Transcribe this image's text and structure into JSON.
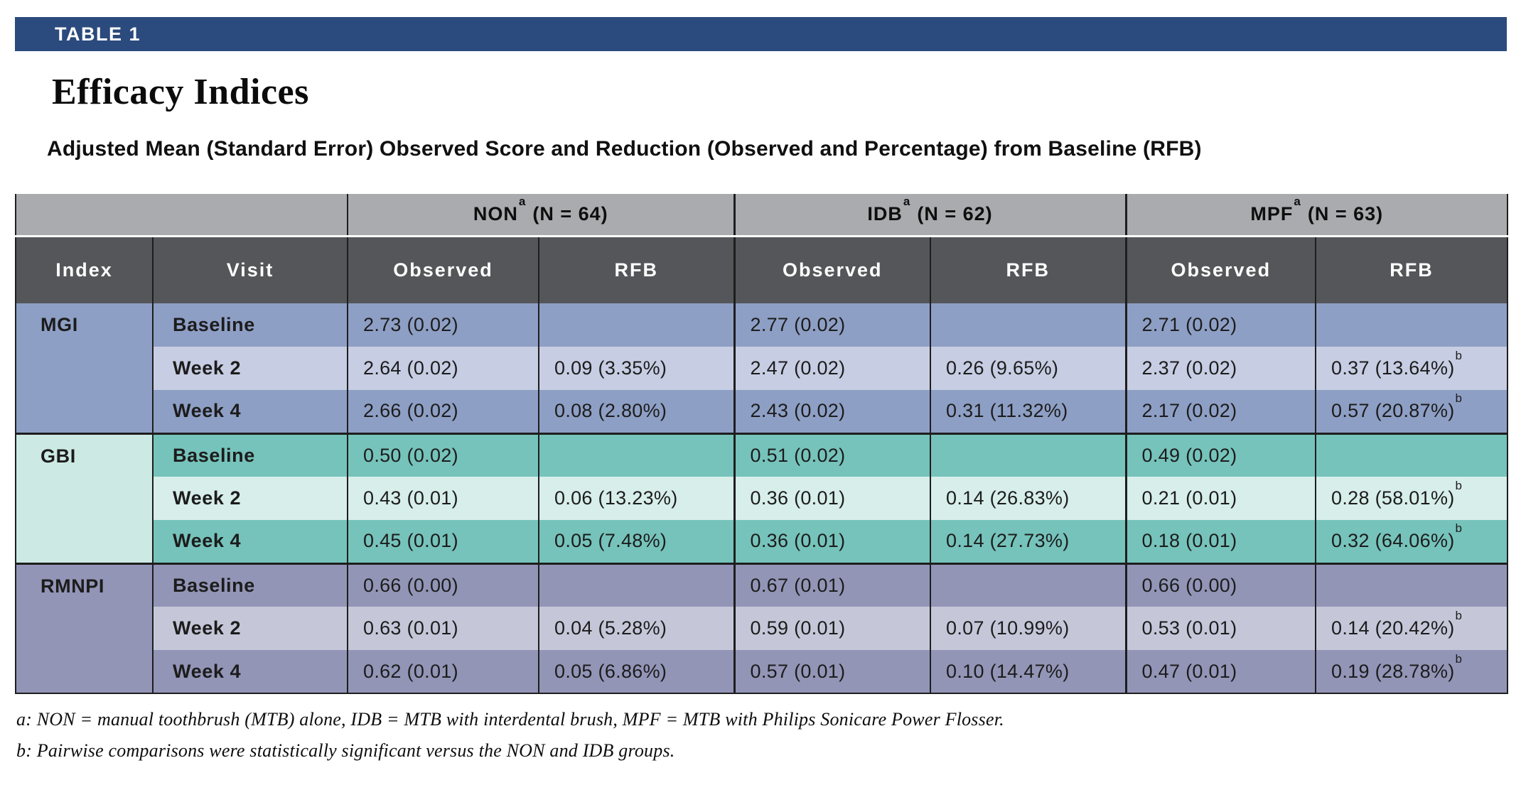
{
  "banner": {
    "label": "TABLE 1"
  },
  "title": "Efficacy Indices",
  "subtitle": "Adjusted Mean (Standard Error) Observed Score and Reduction (Observed and Percentage) from Baseline (RFB)",
  "colors": {
    "navy": "#2B4A7D",
    "header-gray": "#A9ABAE",
    "header-dark": "#555659",
    "border": "#1E1E1E",
    "mgi": "#8E9FC5",
    "mgi-light": "#C7CDE3",
    "gbi": "#76C3BB",
    "gbi-light": "#D7EEEA",
    "gbi-index": "#CDE9E4",
    "rmnpi": "#9295B6",
    "rmnpi-light": "#C5C7D9"
  },
  "table": {
    "groups": [
      {
        "name": "NON",
        "sup": "a",
        "n_label": "(N = 64)"
      },
      {
        "name": "IDB",
        "sup": "a",
        "n_label": "(N = 62)"
      },
      {
        "name": "MPF",
        "sup": "a",
        "n_label": "(N = 63)"
      }
    ],
    "column_headers": {
      "index": "Index",
      "visit": "Visit",
      "observed": "Observed",
      "rfb": "RFB"
    },
    "sections": [
      {
        "key": "mgi",
        "index": "MGI",
        "rows": [
          {
            "visit": "Baseline",
            "cells": [
              "2.73 (0.02)",
              "",
              "2.77 (0.02)",
              "",
              "2.71 (0.02)",
              ""
            ]
          },
          {
            "visit": "Week 2",
            "cells": [
              "2.64 (0.02)",
              "0.09 (3.35%)",
              "2.47 (0.02)",
              "0.26 (9.65%)",
              "2.37 (0.02)",
              {
                "text": "0.37 (13.64%)",
                "sup": "b"
              }
            ]
          },
          {
            "visit": "Week 4",
            "cells": [
              "2.66 (0.02)",
              "0.08 (2.80%)",
              "2.43 (0.02)",
              "0.31 (11.32%)",
              "2.17 (0.02)",
              {
                "text": "0.57 (20.87%)",
                "sup": "b"
              }
            ]
          }
        ]
      },
      {
        "key": "gbi",
        "index": "GBI",
        "rows": [
          {
            "visit": "Baseline",
            "cells": [
              "0.50 (0.02)",
              "",
              "0.51 (0.02)",
              "",
              "0.49 (0.02)",
              ""
            ]
          },
          {
            "visit": "Week 2",
            "cells": [
              "0.43 (0.01)",
              "0.06 (13.23%)",
              "0.36 (0.01)",
              "0.14 (26.83%)",
              "0.21 (0.01)",
              {
                "text": "0.28 (58.01%)",
                "sup": "b"
              }
            ]
          },
          {
            "visit": "Week 4",
            "cells": [
              "0.45 (0.01)",
              "0.05 (7.48%)",
              "0.36 (0.01)",
              "0.14 (27.73%)",
              "0.18 (0.01)",
              {
                "text": "0.32 (64.06%)",
                "sup": "b"
              }
            ]
          }
        ]
      },
      {
        "key": "rmnpi",
        "index": "RMNPI",
        "rows": [
          {
            "visit": "Baseline",
            "cells": [
              "0.66 (0.00)",
              "",
              "0.67 (0.01)",
              "",
              "0.66 (0.00)",
              ""
            ]
          },
          {
            "visit": "Week 2",
            "cells": [
              "0.63 (0.01)",
              "0.04 (5.28%)",
              "0.59 (0.01)",
              "0.07 (10.99%)",
              "0.53 (0.01)",
              {
                "text": "0.14 (20.42%)",
                "sup": "b"
              }
            ]
          },
          {
            "visit": "Week 4",
            "cells": [
              "0.62 (0.01)",
              "0.05 (6.86%)",
              "0.57 (0.01)",
              "0.10 (14.47%)",
              "0.47 (0.01)",
              {
                "text": "0.19 (28.78%)",
                "sup": "b"
              }
            ]
          }
        ]
      }
    ]
  },
  "footnotes": [
    "a: NON = manual toothbrush (MTB) alone, IDB = MTB with interdental brush, MPF = MTB with Philips Sonicare Power Flosser.",
    "b: Pairwise comparisons were statistically significant versus the NON and IDB groups."
  ]
}
